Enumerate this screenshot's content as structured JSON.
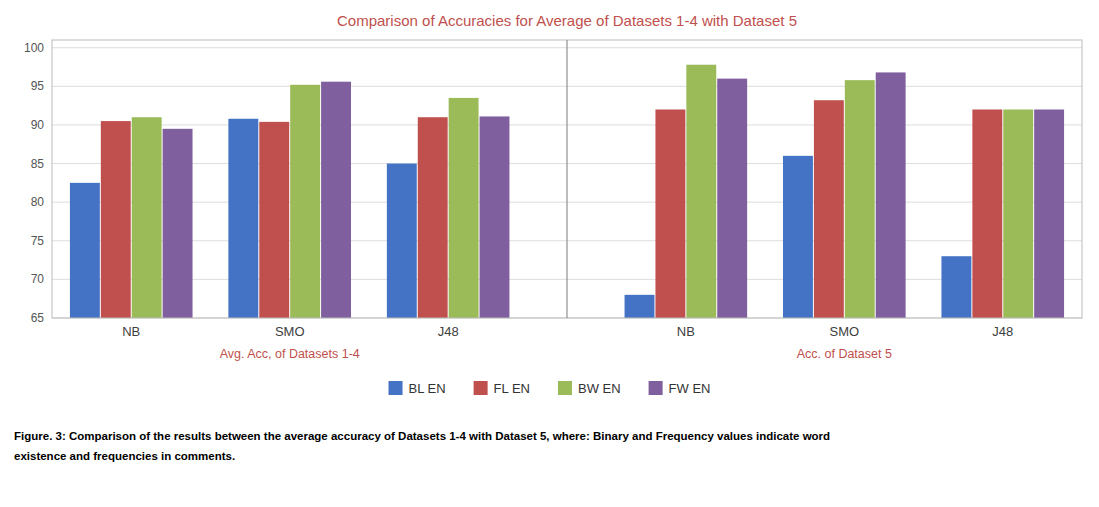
{
  "chart_data": {
    "type": "bar",
    "title": "Comparison of Accuracies for Average of Datasets 1-4 with Dataset 5",
    "categories": [
      "NB",
      "SMO",
      "J48",
      "NB",
      "SMO",
      "J48"
    ],
    "series": [
      {
        "name": "BL EN",
        "color": "#4472c4",
        "values": [
          82.5,
          90.8,
          85.0,
          68.0,
          86.0,
          73.0
        ]
      },
      {
        "name": "FL EN",
        "color": "#c0504d",
        "values": [
          90.5,
          90.4,
          91.0,
          92.0,
          93.2,
          92.0
        ]
      },
      {
        "name": "BW EN",
        "color": "#9bbb59",
        "values": [
          91.0,
          95.2,
          93.5,
          97.8,
          95.8,
          92.0
        ]
      },
      {
        "name": "FW EN",
        "color": "#7f5f9e",
        "values": [
          89.5,
          95.6,
          91.1,
          96.0,
          96.8,
          92.0
        ]
      }
    ],
    "annotations": [
      "Avg. Acc, of Datasets 1-4",
      "Acc. of Dataset 5",
      "Figure. 3:  Comparison of the results between the average accuracy of Datasets 1-4 with Dataset 5, where: Binary and Frequency values indicate word",
      "existence and frequencies in comments."
    ],
    "ylim": [
      65,
      101
    ],
    "yticks": [
      65,
      70,
      75,
      80,
      85,
      90,
      95,
      100
    ],
    "grid": true,
    "legend": "bottom"
  }
}
